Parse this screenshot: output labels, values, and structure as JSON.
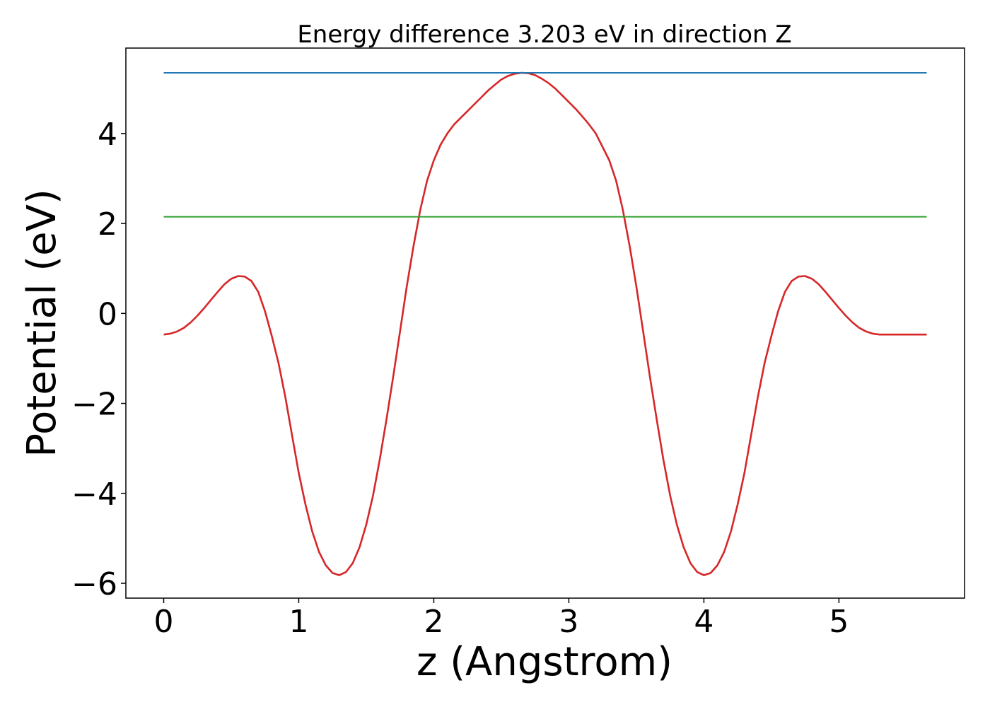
{
  "chart_data": {
    "type": "line",
    "title": "Energy difference 3.203 eV in direction Z",
    "xlabel": "z (Angstrom)",
    "ylabel": "Potential (eV)",
    "xlim": [
      -0.28,
      5.93
    ],
    "ylim": [
      -6.33,
      5.9
    ],
    "xticks": [
      0,
      1,
      2,
      3,
      4,
      5
    ],
    "xtick_labels": [
      "0",
      "1",
      "2",
      "3",
      "4",
      "5"
    ],
    "yticks": [
      -6,
      -4,
      -2,
      0,
      2,
      4
    ],
    "ytick_labels": [
      "−6",
      "−4",
      "−2",
      "0",
      "2",
      "4"
    ],
    "grid": false,
    "series": [
      {
        "color": "#d62728",
        "x": [
          0,
          0.05,
          0.1,
          0.15,
          0.2,
          0.25,
          0.3,
          0.35,
          0.4,
          0.45,
          0.5,
          0.55,
          0.6,
          0.65,
          0.7,
          0.75,
          0.8,
          0.85,
          0.9,
          0.95,
          1.0,
          1.05,
          1.1,
          1.15,
          1.2,
          1.25,
          1.3,
          1.35,
          1.4,
          1.45,
          1.5,
          1.55,
          1.6,
          1.65,
          1.7,
          1.75,
          1.8,
          1.85,
          1.9,
          1.95,
          2.0,
          2.05,
          2.1,
          2.15,
          2.2,
          2.25,
          2.3,
          2.35,
          2.4,
          2.45,
          2.5,
          2.55,
          2.6,
          2.65,
          2.7,
          2.75,
          2.8,
          2.85,
          2.9,
          2.95,
          3.0,
          3.05,
          3.1,
          3.15,
          3.2,
          3.25,
          3.3,
          3.35,
          3.4,
          3.45,
          3.5,
          3.55,
          3.6,
          3.65,
          3.7,
          3.75,
          3.8,
          3.85,
          3.9,
          3.95,
          4.0,
          4.05,
          4.1,
          4.15,
          4.2,
          4.25,
          4.3,
          4.35,
          4.4,
          4.45,
          4.5,
          4.55,
          4.6,
          4.65,
          4.7,
          4.75,
          4.8,
          4.85,
          4.9,
          4.95,
          5.0,
          5.05,
          5.1,
          5.15,
          5.2,
          5.25,
          5.3,
          5.35,
          5.4,
          5.45,
          5.5,
          5.55,
          5.6,
          5.65
        ],
        "y": [
          -0.47,
          -0.45,
          -0.4,
          -0.32,
          -0.2,
          -0.05,
          0.12,
          0.3,
          0.48,
          0.65,
          0.77,
          0.83,
          0.82,
          0.72,
          0.48,
          0.05,
          -0.5,
          -1.1,
          -1.85,
          -2.7,
          -3.55,
          -4.25,
          -4.85,
          -5.3,
          -5.6,
          -5.77,
          -5.82,
          -5.75,
          -5.55,
          -5.2,
          -4.7,
          -4.05,
          -3.25,
          -2.35,
          -1.4,
          -0.4,
          0.6,
          1.5,
          2.3,
          2.95,
          3.4,
          3.75,
          4.0,
          4.2,
          4.35,
          4.5,
          4.65,
          4.8,
          4.95,
          5.08,
          5.2,
          5.28,
          5.33,
          5.35,
          5.34,
          5.3,
          5.22,
          5.12,
          5.0,
          4.85,
          4.7,
          4.55,
          4.38,
          4.2,
          4.0,
          3.7,
          3.4,
          2.95,
          2.3,
          1.5,
          0.6,
          -0.4,
          -1.4,
          -2.35,
          -3.25,
          -4.05,
          -4.7,
          -5.2,
          -5.55,
          -5.75,
          -5.82,
          -5.77,
          -5.6,
          -5.3,
          -4.85,
          -4.25,
          -3.55,
          -2.7,
          -1.85,
          -1.1,
          -0.5,
          0.05,
          0.48,
          0.72,
          0.82,
          0.83,
          0.77,
          0.65,
          0.48,
          0.3,
          0.12,
          -0.05,
          -0.2,
          -0.32,
          -0.4,
          -0.45,
          -0.47,
          -0.47,
          -0.47,
          -0.47,
          -0.47,
          -0.47,
          -0.47,
          -0.47
        ]
      },
      {
        "color": "#1f77b4",
        "x": [
          0,
          5.65
        ],
        "y": [
          5.35,
          5.35
        ]
      },
      {
        "color": "#2ca02c",
        "x": [
          0,
          5.65
        ],
        "y": [
          2.15,
          2.15
        ]
      }
    ]
  }
}
